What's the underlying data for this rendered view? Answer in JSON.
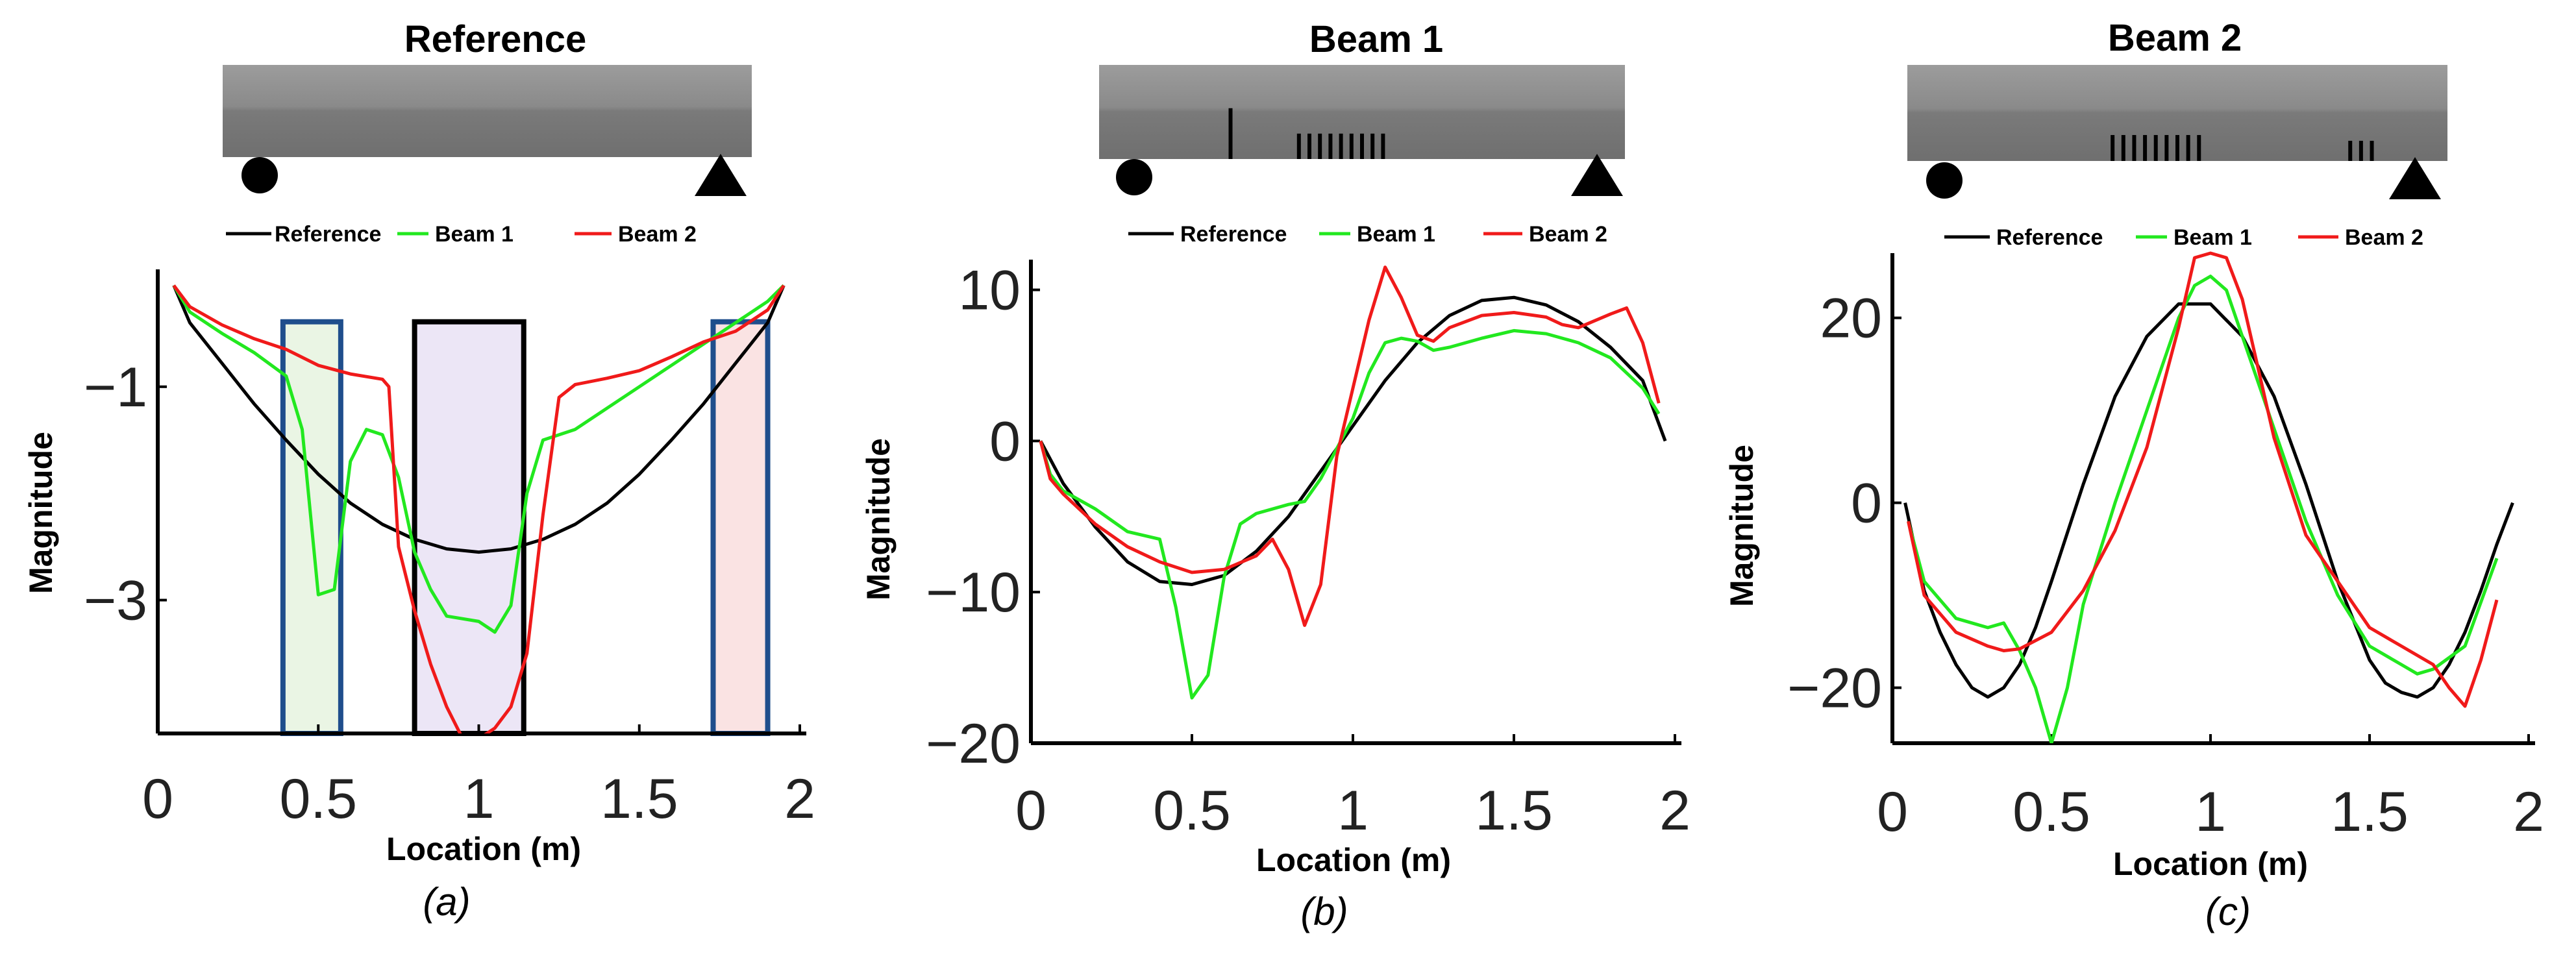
{
  "figure": {
    "colors": {
      "reference": "#000000",
      "beam1": "#22e81f",
      "beam2": "#f01a1a",
      "box_blue": "#1f4e8c",
      "box_black": "#000000"
    }
  },
  "chart_data": [
    {
      "type": "line",
      "title": "Reference",
      "caption": "(a)",
      "xlabel": "Location (m)",
      "ylabel": "Magnitude",
      "xlim": [
        0,
        2
      ],
      "ylim": [
        -4.25,
        0.1
      ],
      "xticks": [
        0,
        0.5,
        1,
        1.5,
        2
      ],
      "xtick_labels": [
        "0",
        "0.5",
        "1",
        "1.5",
        "2"
      ],
      "yticks": [
        -1,
        -3
      ],
      "ytick_labels": [
        "−1",
        "−3"
      ],
      "legend": [
        "Reference",
        "Beam 1",
        "Beam 2"
      ],
      "beam": {
        "cracks": []
      },
      "highlights": [
        {
          "x0": 0.39,
          "x1": 0.57,
          "color": "blue",
          "fill": "#eaf5e4"
        },
        {
          "x0": 0.8,
          "x1": 1.14,
          "color": "black",
          "fill": "#ece6f6"
        },
        {
          "x0": 1.73,
          "x1": 1.9,
          "color": "blue",
          "fill": "#fae3e3"
        }
      ],
      "series": [
        {
          "name": "Reference",
          "x": [
            0.05,
            0.1,
            0.2,
            0.3,
            0.4,
            0.5,
            0.6,
            0.7,
            0.8,
            0.9,
            1.0,
            1.1,
            1.2,
            1.3,
            1.4,
            1.5,
            1.6,
            1.7,
            1.8,
            1.9,
            1.95
          ],
          "y": [
            -0.05,
            -0.4,
            -0.78,
            -1.16,
            -1.5,
            -1.82,
            -2.09,
            -2.29,
            -2.43,
            -2.52,
            -2.55,
            -2.52,
            -2.43,
            -2.29,
            -2.09,
            -1.82,
            -1.5,
            -1.16,
            -0.78,
            -0.4,
            -0.05
          ]
        },
        {
          "name": "Beam 1",
          "x": [
            0.05,
            0.1,
            0.2,
            0.3,
            0.4,
            0.45,
            0.5,
            0.55,
            0.6,
            0.65,
            0.7,
            0.75,
            0.8,
            0.85,
            0.9,
            1.0,
            1.05,
            1.1,
            1.15,
            1.2,
            1.3,
            1.4,
            1.5,
            1.6,
            1.7,
            1.8,
            1.9,
            1.95
          ],
          "y": [
            -0.05,
            -0.3,
            -0.5,
            -0.68,
            -0.9,
            -1.4,
            -2.95,
            -2.9,
            -1.7,
            -1.4,
            -1.45,
            -1.85,
            -2.55,
            -2.9,
            -3.15,
            -3.2,
            -3.3,
            -3.05,
            -2.0,
            -1.5,
            -1.4,
            -1.2,
            -1.0,
            -0.8,
            -0.6,
            -0.4,
            -0.2,
            -0.05
          ]
        },
        {
          "name": "Beam 2",
          "x": [
            0.05,
            0.1,
            0.2,
            0.3,
            0.4,
            0.5,
            0.6,
            0.7,
            0.72,
            0.75,
            0.8,
            0.85,
            0.9,
            0.95,
            1.0,
            1.05,
            1.1,
            1.15,
            1.2,
            1.25,
            1.3,
            1.4,
            1.5,
            1.6,
            1.7,
            1.8,
            1.9,
            1.95
          ],
          "y": [
            -0.05,
            -0.25,
            -0.42,
            -0.55,
            -0.65,
            -0.8,
            -0.88,
            -0.93,
            -1.0,
            -2.5,
            -3.1,
            -3.6,
            -4.0,
            -4.3,
            -4.3,
            -4.2,
            -4.0,
            -3.5,
            -2.2,
            -1.1,
            -0.98,
            -0.92,
            -0.85,
            -0.72,
            -0.58,
            -0.48,
            -0.28,
            -0.05
          ]
        }
      ]
    },
    {
      "type": "line",
      "title": "Beam 1",
      "caption": "(b)",
      "xlabel": "Location (m)",
      "ylabel": "Magnitude",
      "xlim": [
        0,
        2
      ],
      "ylim": [
        -20,
        12
      ],
      "xticks": [
        0,
        0.5,
        1,
        1.5,
        2
      ],
      "xtick_labels": [
        "0",
        "0.5",
        "1",
        "1.5",
        "2"
      ],
      "yticks": [
        10,
        0,
        -10,
        -20
      ],
      "ytick_labels": [
        "10",
        "0",
        "−10",
        "−20"
      ],
      "legend": [
        "Reference",
        "Beam 1",
        "Beam 2"
      ],
      "beam": {
        "cracks": [
          {
            "x": 0.25,
            "h": 0.9
          },
          {
            "x": 0.38
          },
          {
            "x": 0.4
          },
          {
            "x": 0.42
          },
          {
            "x": 0.44
          },
          {
            "x": 0.46
          },
          {
            "x": 0.48
          },
          {
            "x": 0.5
          },
          {
            "x": 0.52
          },
          {
            "x": 0.54
          }
        ]
      },
      "highlights": [],
      "series": [
        {
          "name": "Reference",
          "x": [
            0.03,
            0.1,
            0.2,
            0.3,
            0.4,
            0.5,
            0.6,
            0.7,
            0.8,
            0.9,
            1.0,
            1.1,
            1.2,
            1.3,
            1.4,
            1.5,
            1.6,
            1.7,
            1.8,
            1.9,
            1.97
          ],
          "y": [
            0,
            -2.8,
            -5.7,
            -8.0,
            -9.3,
            -9.5,
            -8.9,
            -7.3,
            -5.0,
            -2.0,
            1.0,
            4.0,
            6.5,
            8.3,
            9.3,
            9.5,
            9.0,
            7.9,
            6.2,
            4.0,
            0
          ]
        },
        {
          "name": "Beam 1",
          "x": [
            0.03,
            0.06,
            0.1,
            0.2,
            0.3,
            0.4,
            0.45,
            0.5,
            0.55,
            0.6,
            0.65,
            0.7,
            0.8,
            0.85,
            0.9,
            1.0,
            1.05,
            1.1,
            1.15,
            1.2,
            1.25,
            1.3,
            1.4,
            1.5,
            1.6,
            1.7,
            1.8,
            1.9,
            1.95
          ],
          "y": [
            0,
            -2.2,
            -3.3,
            -4.5,
            -6.0,
            -6.5,
            -11.0,
            -17.0,
            -15.5,
            -9.0,
            -5.5,
            -4.8,
            -4.2,
            -4.0,
            -2.5,
            1.5,
            4.5,
            6.5,
            6.8,
            6.6,
            6.0,
            6.2,
            6.8,
            7.3,
            7.1,
            6.5,
            5.5,
            3.5,
            1.8
          ]
        },
        {
          "name": "Beam 2",
          "x": [
            0.03,
            0.06,
            0.1,
            0.2,
            0.3,
            0.4,
            0.5,
            0.6,
            0.7,
            0.75,
            0.8,
            0.85,
            0.9,
            0.95,
            1.0,
            1.05,
            1.1,
            1.15,
            1.2,
            1.25,
            1.3,
            1.4,
            1.5,
            1.6,
            1.65,
            1.7,
            1.8,
            1.85,
            1.9,
            1.95
          ],
          "y": [
            0,
            -2.5,
            -3.5,
            -5.5,
            -7.0,
            -8.0,
            -8.7,
            -8.5,
            -7.6,
            -6.5,
            -8.5,
            -12.2,
            -9.5,
            -1.0,
            3.5,
            8.0,
            11.5,
            9.5,
            7.0,
            6.6,
            7.5,
            8.3,
            8.5,
            8.2,
            7.7,
            7.5,
            8.4,
            8.8,
            6.5,
            2.5
          ]
        }
      ]
    },
    {
      "type": "line",
      "title": "Beam 2",
      "caption": "(c)",
      "xlabel": "Location (m)",
      "ylabel": "Magnitude",
      "xlim": [
        0,
        2
      ],
      "ylim": [
        -26,
        27
      ],
      "xticks": [
        0,
        0.5,
        1,
        1.5,
        2
      ],
      "xtick_labels": [
        "0",
        "0.5",
        "1",
        "1.5",
        "2"
      ],
      "yticks": [
        20,
        0,
        -20
      ],
      "ytick_labels": [
        "20",
        "0",
        "−20"
      ],
      "legend": [
        "Reference",
        "Beam 1",
        "Beam 2"
      ],
      "beam": {
        "cracks": [
          {
            "x": 0.38
          },
          {
            "x": 0.4
          },
          {
            "x": 0.42
          },
          {
            "x": 0.44
          },
          {
            "x": 0.46
          },
          {
            "x": 0.48
          },
          {
            "x": 0.5
          },
          {
            "x": 0.52
          },
          {
            "x": 0.54
          },
          {
            "x": 0.82,
            "h": 0.35
          },
          {
            "x": 0.84,
            "h": 0.35
          },
          {
            "x": 0.86,
            "h": 0.35
          }
        ]
      },
      "highlights": [],
      "series": [
        {
          "name": "Reference",
          "x": [
            0.04,
            0.1,
            0.15,
            0.2,
            0.25,
            0.3,
            0.35,
            0.4,
            0.45,
            0.5,
            0.6,
            0.7,
            0.8,
            0.9,
            1.0,
            1.1,
            1.2,
            1.3,
            1.4,
            1.5,
            1.55,
            1.6,
            1.65,
            1.7,
            1.75,
            1.8,
            1.85,
            1.9,
            1.95
          ],
          "y": [
            0,
            -9.5,
            -14.0,
            -17.5,
            -20.0,
            -21.0,
            -20.0,
            -17.5,
            -13.5,
            -8.5,
            2.0,
            11.5,
            18.0,
            21.5,
            21.5,
            18.0,
            11.5,
            2.0,
            -8.5,
            -17.0,
            -19.5,
            -20.5,
            -21.0,
            -20.0,
            -17.5,
            -14.0,
            -9.5,
            -4.5,
            0
          ]
        },
        {
          "name": "Beam 1",
          "x": [
            0.05,
            0.1,
            0.2,
            0.3,
            0.35,
            0.4,
            0.45,
            0.5,
            0.55,
            0.6,
            0.7,
            0.8,
            0.9,
            0.95,
            1.0,
            1.05,
            1.1,
            1.2,
            1.3,
            1.4,
            1.5,
            1.6,
            1.65,
            1.7,
            1.8,
            1.9
          ],
          "y": [
            -2,
            -8.5,
            -12.5,
            -13.5,
            -13.0,
            -16.0,
            -20.0,
            -26.0,
            -20.0,
            -11.0,
            0,
            10.0,
            20.0,
            23.5,
            24.5,
            23.0,
            18.0,
            8.0,
            -2.0,
            -10.0,
            -15.5,
            -17.5,
            -18.5,
            -18.0,
            -15.5,
            -6.0
          ]
        },
        {
          "name": "Beam 2",
          "x": [
            0.05,
            0.1,
            0.2,
            0.3,
            0.35,
            0.4,
            0.5,
            0.6,
            0.7,
            0.8,
            0.9,
            0.95,
            1.0,
            1.05,
            1.1,
            1.2,
            1.3,
            1.4,
            1.5,
            1.6,
            1.7,
            1.75,
            1.8,
            1.85,
            1.9
          ],
          "y": [
            -2,
            -10.0,
            -14.0,
            -15.5,
            -16.0,
            -15.8,
            -14.0,
            -9.5,
            -3.0,
            6.0,
            19.0,
            26.5,
            27.0,
            26.5,
            22.0,
            7.0,
            -3.5,
            -8.5,
            -13.5,
            -15.5,
            -17.5,
            -20.0,
            -22.0,
            -17.0,
            -10.5
          ]
        }
      ]
    }
  ]
}
